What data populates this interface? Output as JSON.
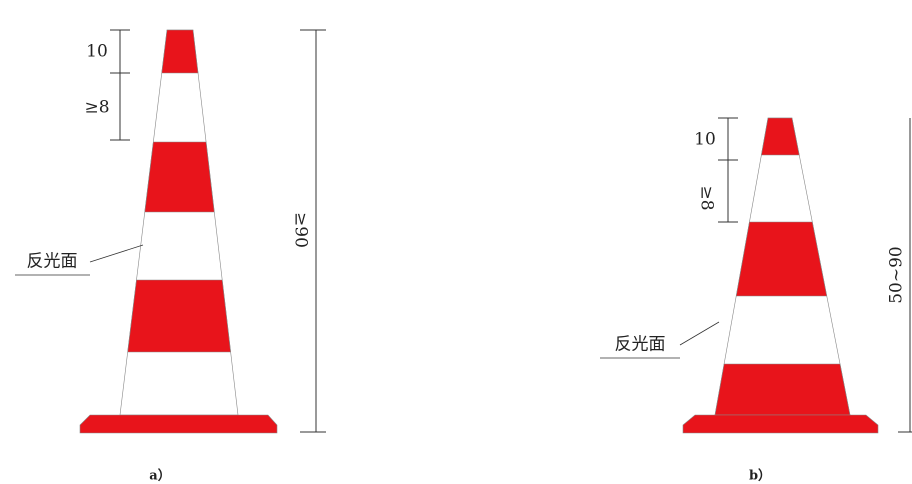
{
  "figures": [
    {
      "top_height": "10",
      "stripe_gap": "≥8",
      "total_height": "≥90",
      "reflective_label": "反光面",
      "caption": "a）"
    },
    {
      "top_height": "10",
      "stripe_gap": "≥8",
      "total_height": "50~90",
      "reflective_label": "反光面",
      "caption": "b）"
    }
  ]
}
